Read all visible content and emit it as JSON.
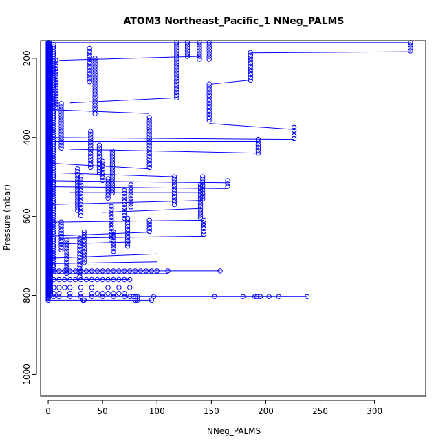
{
  "chart_data": {
    "type": "scatter",
    "title": "ATOM3 Northeast_Pacific_1 NNeg_PALMS",
    "xlabel": "NNeg_PALMS",
    "ylabel": "Pressure (mbar)",
    "xlim": [
      -7,
      347
    ],
    "ylim": [
      1055,
      155
    ],
    "y_reversed": true,
    "x_ticks": [
      0,
      50,
      100,
      150,
      200,
      250,
      300
    ],
    "y_ticks": [
      200,
      400,
      600,
      800,
      1000
    ],
    "grid": false,
    "legend": "none",
    "color": "#0000ff",
    "series": [
      {
        "style": "points-and-lines",
        "profiles": [
          {
            "x": 0,
            "p": [
              160,
              810
            ],
            "step": 2.2
          },
          {
            "x": 1,
            "p": [
              160,
              790
            ],
            "step": 2.6
          },
          {
            "x": 2,
            "p": [
              170,
              800
            ],
            "step": 3.0
          },
          {
            "x": 5,
            "p": [
              165,
              735
            ],
            "step": 6
          },
          {
            "x": 7,
            "p": [
              205,
              330
            ],
            "step": 7
          },
          {
            "x": 12,
            "p": [
              315,
              430
            ],
            "step": 7
          },
          {
            "x": 12,
            "p": [
              615,
              690
            ],
            "step": 7
          },
          {
            "x": 17,
            "p": [
              660,
              745
            ],
            "step": 7
          },
          {
            "x": 27,
            "p": [
              480,
              590
            ],
            "step": 7
          },
          {
            "x": 30,
            "p": [
              500,
              600
            ],
            "step": 7
          },
          {
            "x": 29,
            "p": [
              655,
              755
            ],
            "step": 7
          },
          {
            "x": 33,
            "p": [
              640,
              720
            ],
            "step": 7
          },
          {
            "x": 38,
            "p": [
              175,
              260
            ],
            "step": 7
          },
          {
            "x": 39,
            "p": [
              385,
              480
            ],
            "step": 7
          },
          {
            "x": 43,
            "p": [
              200,
              345
            ],
            "step": 7
          },
          {
            "x": 47,
            "p": [
              420,
              490
            ],
            "step": 7
          },
          {
            "x": 50,
            "p": [
              460,
              510
            ],
            "step": 7
          },
          {
            "x": 55,
            "p": [
              505,
              560
            ],
            "step": 7
          },
          {
            "x": 59,
            "p": [
              435,
              540
            ],
            "step": 7
          },
          {
            "x": 58,
            "p": [
              575,
              660
            ],
            "step": 7
          },
          {
            "x": 60,
            "p": [
              640,
              690
            ],
            "step": 7
          },
          {
            "x": 70,
            "p": [
              535,
              610
            ],
            "step": 7
          },
          {
            "x": 73,
            "p": [
              605,
              680
            ],
            "step": 7
          },
          {
            "x": 76,
            "p": [
              520,
              580
            ],
            "step": 7
          },
          {
            "x": 93,
            "p": [
              350,
              480
            ],
            "step": 7
          },
          {
            "x": 93,
            "p": [
              610,
              640
            ],
            "step": 7
          },
          {
            "x": 118,
            "p": [
              160,
              300
            ],
            "step": 7
          },
          {
            "x": 116,
            "p": [
              500,
              570
            ],
            "step": 7
          },
          {
            "x": 128,
            "p": [
              160,
              200
            ],
            "step": 7
          },
          {
            "x": 139,
            "p": [
              160,
              205
            ],
            "step": 7
          },
          {
            "x": 140,
            "p": [
              520,
              605
            ],
            "step": 7
          },
          {
            "x": 142,
            "p": [
              500,
              560
            ],
            "step": 7
          },
          {
            "x": 143,
            "p": [
              610,
              650
            ],
            "step": 7
          },
          {
            "x": 148,
            "p": [
              160,
              205
            ],
            "step": 7
          },
          {
            "x": 148,
            "p": [
              265,
              360
            ],
            "step": 7
          },
          {
            "x": 165,
            "p": [
              510,
              530
            ],
            "step": 7
          },
          {
            "x": 186,
            "p": [
              185,
              260
            ],
            "step": 7
          },
          {
            "x": 193,
            "p": [
              405,
              440
            ],
            "step": 7
          },
          {
            "x": 226,
            "p": [
              375,
              405
            ],
            "step": 7
          },
          {
            "x": 333,
            "p": [
              160,
              185
            ],
            "step": 7
          }
        ],
        "horizontal_points": [
          {
            "p": 738,
            "x": [
              0,
              3,
              6,
              10,
              15,
              20,
              25,
              30,
              35,
              40,
              45,
              50,
              55,
              60,
              65,
              70,
              75,
              80,
              85,
              90,
              95,
              100,
              110,
              158
            ]
          },
          {
            "p": 760,
            "x": [
              0,
              5,
              10,
              15,
              20,
              25,
              30,
              35,
              40,
              45,
              50,
              55,
              60,
              65,
              70,
              75
            ]
          },
          {
            "p": 780,
            "x": [
              0,
              5,
              10,
              15,
              20,
              30,
              40,
              55,
              65,
              75
            ]
          },
          {
            "p": 795,
            "x": [
              0,
              5,
              10,
              20,
              30,
              40,
              45,
              50,
              55,
              60,
              65,
              70
            ]
          },
          {
            "p": 803,
            "x": [
              5,
              10,
              20,
              30,
              40,
              50,
              60,
              70,
              75,
              78,
              80,
              82,
              97,
              153,
              179,
              190,
              192,
              195,
              203,
              212,
              238
            ]
          },
          {
            "p": 812,
            "x": [
              0,
              32,
              33,
              80,
              82,
              95
            ]
          }
        ],
        "connecting_lines": [
          {
            "x": [
              333,
              0
            ],
            "p": [
              160,
              160
            ]
          },
          {
            "x": [
              333,
              186
            ],
            "p": [
              183,
              186
            ]
          },
          {
            "x": [
              140,
              10
            ],
            "p": [
              195,
              205
            ]
          },
          {
            "x": [
              186,
              150
            ],
            "p": [
              255,
              265
            ]
          },
          {
            "x": [
              118,
              20
            ],
            "p": [
              300,
              313
            ]
          },
          {
            "x": [
              93,
              0
            ],
            "p": [
              340,
              330
            ]
          },
          {
            "x": [
              226,
              148
            ],
            "p": [
              380,
              365
            ]
          },
          {
            "x": [
              226,
              0
            ],
            "p": [
              405,
              400
            ]
          },
          {
            "x": [
              193,
              0
            ],
            "p": [
              410,
              410
            ]
          },
          {
            "x": [
              193,
              20
            ],
            "p": [
              440,
              430
            ]
          },
          {
            "x": [
              93,
              0
            ],
            "p": [
              480,
              465
            ]
          },
          {
            "x": [
              116,
              10
            ],
            "p": [
              500,
              490
            ]
          },
          {
            "x": [
              165,
              0
            ],
            "p": [
              515,
              510
            ]
          },
          {
            "x": [
              165,
              0
            ],
            "p": [
              530,
              525
            ]
          },
          {
            "x": [
              140,
              20
            ],
            "p": [
              540,
              540
            ]
          },
          {
            "x": [
              142,
              0
            ],
            "p": [
              560,
              570
            ]
          },
          {
            "x": [
              142,
              50
            ],
            "p": [
              580,
              590
            ]
          },
          {
            "x": [
              143,
              0
            ],
            "p": [
              610,
              615
            ]
          },
          {
            "x": [
              143,
              10
            ],
            "p": [
              650,
              655
            ]
          },
          {
            "x": [
              93,
              0
            ],
            "p": [
              640,
              650
            ]
          },
          {
            "x": [
              76,
              10
            ],
            "p": [
              665,
              670
            ]
          },
          {
            "x": [
              100,
              5
            ],
            "p": [
              695,
              705
            ]
          },
          {
            "x": [
              100,
              0
            ],
            "p": [
              715,
              720
            ]
          },
          {
            "x": [
              158,
              0
            ],
            "p": [
              738,
              738
            ]
          },
          {
            "x": [
              110,
              0
            ],
            "p": [
              745,
              745
            ]
          },
          {
            "x": [
              75,
              0
            ],
            "p": [
              760,
              760
            ]
          },
          {
            "x": [
              238,
              0
            ],
            "p": [
              803,
              803
            ]
          },
          {
            "x": [
              95,
              0
            ],
            "p": [
              812,
              812
            ]
          }
        ]
      }
    ]
  }
}
